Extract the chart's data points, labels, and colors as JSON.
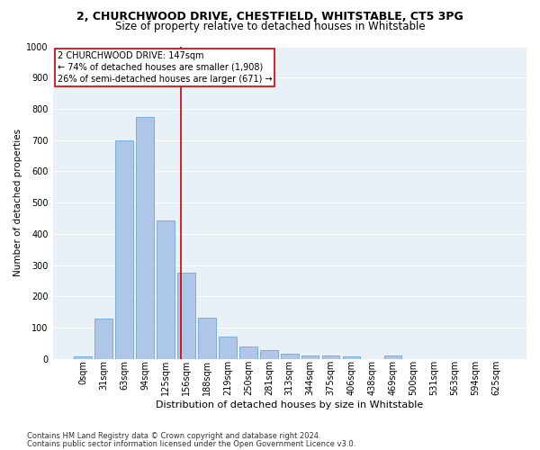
{
  "title1": "2, CHURCHWOOD DRIVE, CHESTFIELD, WHITSTABLE, CT5 3PG",
  "title2": "Size of property relative to detached houses in Whitstable",
  "xlabel": "Distribution of detached houses by size in Whitstable",
  "ylabel": "Number of detached properties",
  "footnote1": "Contains HM Land Registry data © Crown copyright and database right 2024.",
  "footnote2": "Contains public sector information licensed under the Open Government Licence v3.0.",
  "bar_labels": [
    "0sqm",
    "31sqm",
    "63sqm",
    "94sqm",
    "125sqm",
    "156sqm",
    "188sqm",
    "219sqm",
    "250sqm",
    "281sqm",
    "313sqm",
    "344sqm",
    "375sqm",
    "406sqm",
    "438sqm",
    "469sqm",
    "500sqm",
    "531sqm",
    "563sqm",
    "594sqm",
    "625sqm"
  ],
  "bar_values": [
    8,
    128,
    700,
    775,
    443,
    275,
    133,
    70,
    40,
    27,
    15,
    12,
    10,
    8,
    0,
    10,
    0,
    0,
    0,
    0,
    0
  ],
  "bar_color": "#aec6e8",
  "bar_edgecolor": "#5b9bd5",
  "background_color": "#e8f0f8",
  "grid_color": "#ffffff",
  "vline_x": 4.75,
  "vline_color": "#cc0000",
  "annotation_line1": "2 CHURCHWOOD DRIVE: 147sqm",
  "annotation_line2": "← 74% of detached houses are smaller (1,908)",
  "annotation_line3": "26% of semi-detached houses are larger (671) →",
  "annotation_box_color": "#cc0000",
  "ylim": [
    0,
    1000
  ],
  "yticks": [
    0,
    100,
    200,
    300,
    400,
    500,
    600,
    700,
    800,
    900,
    1000
  ],
  "title1_fontsize": 9,
  "title2_fontsize": 8.5,
  "xlabel_fontsize": 8,
  "ylabel_fontsize": 7.5,
  "annotation_fontsize": 7,
  "tick_fontsize": 7
}
